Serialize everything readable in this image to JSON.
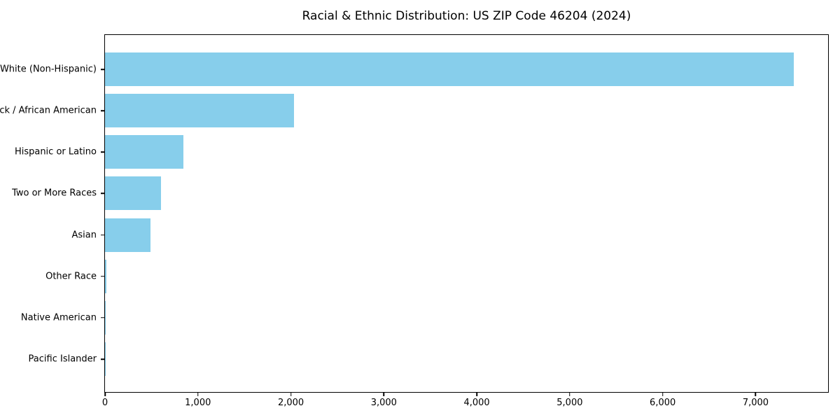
{
  "chart_data": {
    "type": "bar",
    "orientation": "horizontal",
    "title": "Racial & Ethnic Distribution: US ZIP Code 46204 (2024)",
    "categories": [
      "White (Non-Hispanic)",
      "Black / African American",
      "Hispanic or Latino",
      "Two or More Races",
      "Asian",
      "Other Race",
      "Native American",
      "Pacific Islander"
    ],
    "values": [
      7410,
      2030,
      840,
      600,
      490,
      15,
      8,
      4
    ],
    "xlabel": "",
    "ylabel": "",
    "xlim": [
      0,
      7780
    ],
    "x_ticks": [
      0,
      1000,
      2000,
      3000,
      4000,
      5000,
      6000,
      7000
    ],
    "x_tick_labels": [
      "0",
      "1,000",
      "2,000",
      "3,000",
      "4,000",
      "5,000",
      "6,000",
      "7,000"
    ],
    "bar_color": "#87CEEB",
    "background_color": "#FFFFFF",
    "spine_color": "#000000",
    "grid": false,
    "legend": "none"
  }
}
